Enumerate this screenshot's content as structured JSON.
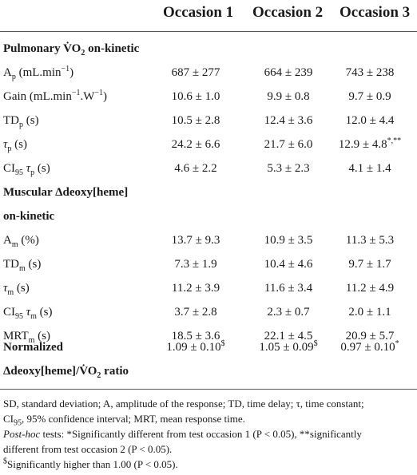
{
  "headers": [
    "Occasion 1",
    "Occasion 2",
    "Occasion 3"
  ],
  "sections": {
    "pulmonary": {
      "title": "Pulmonary V̇O",
      "title_sub": "2",
      "title_tail": " on-kinetic"
    },
    "muscular": {
      "line1": "Muscular Δdeoxy[heme]",
      "line2": "on-kinetic"
    },
    "ratio": {
      "line2_a": "Δdeoxy[heme]/V̇O",
      "line2_sub": "2",
      "line2_b": " ratio"
    }
  },
  "rows": [
    {
      "label": "A",
      "sub": "p",
      "sup": "",
      "tail": " (mL.min",
      "tail_sup": "−1",
      "tail_end": ")",
      "v1": "687 ± 277",
      "v2": "664 ± 239",
      "v3": "743 ± 238"
    },
    {
      "label": "Gain (mL.min",
      "sub": "",
      "sup": "−1",
      "tail": ".W",
      "tail_sup": "−1",
      "tail_end": ")",
      "v1": "10.6 ± 1.0",
      "v2": "9.9 ± 0.8",
      "v3": "9.7 ± 0.9"
    },
    {
      "label": "TD",
      "sub": "p",
      "sup": "",
      "tail": " (s)",
      "tail_sup": "",
      "tail_end": "",
      "v1": "10.5 ± 2.8",
      "v2": "12.4 ± 3.6",
      "v3": "12.0 ± 4.4"
    },
    {
      "label": "τ",
      "sub": "p",
      "sup": "",
      "tail": " (s)",
      "tail_sup": "",
      "tail_end": "",
      "v1": "24.2 ± 6.6",
      "v2": "21.7 ± 6.0",
      "v3": "12.9 ± 4.8",
      "v3_sup": "*,**"
    },
    {
      "label": "CI",
      "sub": "95",
      "sup": "",
      "tail": " τ",
      "tail_sub": "p",
      "tail_end": " (s)",
      "v1": "4.6 ± 2.2",
      "v2": "5.3 ± 2.3",
      "v3": "4.1 ± 1.4"
    },
    {
      "label": "A",
      "sub": "m",
      "sup": "",
      "tail": " (%)",
      "tail_sup": "",
      "tail_end": "",
      "v1": "13.7 ± 9.3",
      "v2": "10.9 ± 3.5",
      "v3": "11.3 ± 5.3"
    },
    {
      "label": "TD",
      "sub": "m",
      "sup": "",
      "tail": " (s)",
      "tail_sup": "",
      "tail_end": "",
      "v1": "7.3 ± 1.9",
      "v2": "10.4 ± 4.6",
      "v3": "9.7 ± 1.7"
    },
    {
      "label": "τ",
      "sub": "m",
      "sup": "",
      "tail": " (s)",
      "tail_sup": "",
      "tail_end": "",
      "v1": "11.2 ± 3.9",
      "v2": "11.6 ± 3.4",
      "v3": "11.2 ± 4.9"
    },
    {
      "label": "CI",
      "sub": "95",
      "sup": "",
      "tail": " τ",
      "tail_sub": "m",
      "tail_end": " (s)",
      "v1": "3.7 ± 2.8",
      "v2": "2.3 ± 0.7",
      "v3": "2.0 ± 1.1"
    },
    {
      "label": "MRT",
      "sub": "m",
      "sup": "",
      "tail": " (s)",
      "tail_sup": "",
      "tail_end": "",
      "v1": "18.5 ± 3.6",
      "v2": "22.1 ± 4.5",
      "v3": "20.9 ± 5.7"
    }
  ],
  "normalized": {
    "label": "Normalized",
    "v1": "1.09 ± 0.10",
    "v1_sup": "$",
    "v2": "1.05 ± 0.09",
    "v2_sup": "$",
    "v3": "0.97 ± 0.10",
    "v3_sup": "*"
  },
  "footnotes": {
    "abbr_1": "SD, standard deviation; A, amplitude of the response; TD, time delay; τ, time constant;",
    "abbr_2a": "CI",
    "abbr_2sub": "95",
    "abbr_2b": ", 95% confidence interval; MRT, mean response time.",
    "posthoc_label": "Post-hoc",
    "posthoc_1": " tests: *Significantly different from test occasion 1 (P < 0.05), **significantly",
    "posthoc_2": "different from test occasion 2 (P < 0.05).",
    "dollar_sup": "$",
    "dollar_text": "Significantly higher than 1.00 (P < 0.05)."
  }
}
